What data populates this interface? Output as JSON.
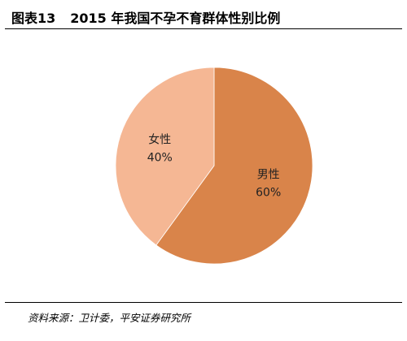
{
  "figure": {
    "label": "图表13",
    "title": "2015 年我国不孕不育群体性别比例"
  },
  "chart_data": {
    "type": "pie",
    "title": "2015 年我国不孕不育群体性别比例",
    "slices": [
      {
        "name": "男性",
        "value": 60,
        "value_label": "60%",
        "color": "#d9844a"
      },
      {
        "name": "女性",
        "value": 40,
        "value_label": "40%",
        "color": "#f5b794"
      }
    ],
    "start_angle_deg": 0,
    "direction": "clockwise",
    "legend": "none"
  },
  "source": {
    "text": "资料来源：卫计委，平安证券研究所"
  }
}
